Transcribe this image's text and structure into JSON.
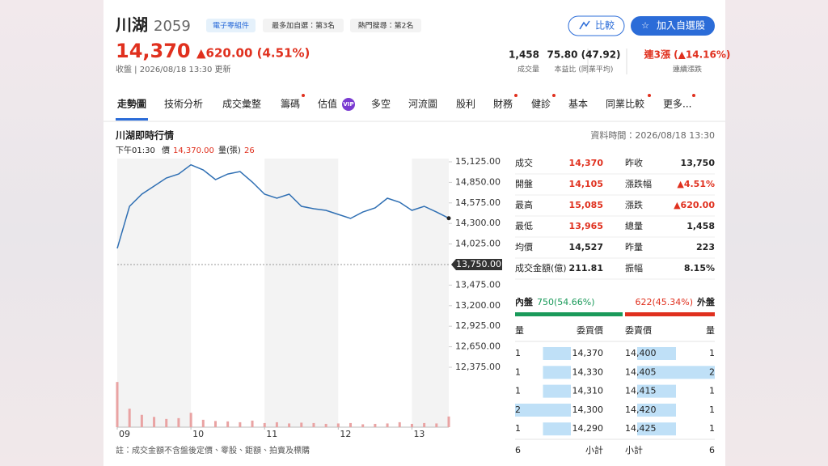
{
  "header": {
    "name": "川湖",
    "code": "2059",
    "tags": [
      "電子零組件",
      "最多加自選：第3名",
      "熱門搜尋：第2名"
    ],
    "buttons": [
      "比較",
      "加入自選股"
    ]
  },
  "quote": {
    "price": "14,370",
    "change": "▲620.00 (4.51%)",
    "updated": "收盤 | 2026/08/18 13:30 更新",
    "stats": [
      {
        "value": "1,458",
        "label": "成交量"
      },
      {
        "value": "75.80 (47.92)",
        "label": "本益比 (同業平均)"
      },
      {
        "value": "連3漲 (▲14.16%)",
        "label": "連續漲跌"
      }
    ]
  },
  "tabs": [
    "走勢圖",
    "技術分析",
    "成交彙整",
    "籌碼",
    "估值",
    "多空",
    "河流圖",
    "股利",
    "財務",
    "健診",
    "基本",
    "同業比較",
    "更多..."
  ],
  "vip_badge": "VIP",
  "section": {
    "title": "川湖即時行情",
    "data_time": "資料時間：2026/08/18 13:30",
    "legend_time": "下午01:30",
    "legend_price": "14,370.00",
    "legend_volume": "26"
  },
  "chart_data": {
    "type": "line",
    "x": [
      540,
      550,
      560,
      570,
      580,
      590,
      600,
      610,
      620,
      630,
      640,
      650,
      660,
      670,
      680,
      690,
      700,
      710,
      720,
      730,
      740,
      750,
      760,
      770,
      780,
      790,
      800,
      810
    ],
    "series": [
      {
        "name": "價",
        "color": "#2f6fb3",
        "values": [
          13965,
          14530,
          14692,
          14800,
          14908,
          14962,
          15085,
          15017,
          14887,
          14962,
          14995,
          14854,
          14692,
          14638,
          14692,
          14530,
          14497,
          14475,
          14421,
          14367,
          14453,
          14508,
          14638,
          14584,
          14475,
          14530,
          14453,
          14370
        ]
      }
    ],
    "volume": {
      "name": "量(張)",
      "color": "#e9a3a3",
      "ylim": [
        0,
        130
      ],
      "values": [
        110,
        45,
        30,
        25,
        20,
        22,
        35,
        18,
        15,
        14,
        12,
        16,
        10,
        12,
        9,
        11,
        10,
        8,
        9,
        10,
        7,
        8,
        9,
        12,
        8,
        10,
        9,
        26
      ]
    },
    "xlim": [
      540,
      810
    ],
    "xticks": [
      {
        "value": 540,
        "label": "09"
      },
      {
        "value": 600,
        "label": "10"
      },
      {
        "value": 660,
        "label": "11"
      },
      {
        "value": 720,
        "label": "12"
      },
      {
        "value": 780,
        "label": "13"
      }
    ],
    "ylim": [
      12375,
      15125
    ],
    "yticks": [
      {
        "value": 15125,
        "label": "15,125.00"
      },
      {
        "value": 14850,
        "label": "14,850.00"
      },
      {
        "value": 14575,
        "label": "14,575.00"
      },
      {
        "value": 14300,
        "label": "14,300.00"
      },
      {
        "value": 14025,
        "label": "14,025.00"
      },
      {
        "value": 13475,
        "label": "13,475.00"
      },
      {
        "value": 13200,
        "label": "13,200.00"
      },
      {
        "value": 12925,
        "label": "12,925.00"
      },
      {
        "value": 12650,
        "label": "12,650.00"
      },
      {
        "value": 12375,
        "label": "12,375.00"
      }
    ],
    "reference": {
      "value": 13750,
      "label": "13,750.00"
    }
  },
  "quote_table": {
    "rows": [
      [
        "成交",
        "14,370",
        "昨收",
        "13,750"
      ],
      [
        "開盤",
        "14,105",
        "漲跌幅",
        "▲4.51%"
      ],
      [
        "最高",
        "15,085",
        "漲跌",
        "▲620.00"
      ],
      [
        "最低",
        "13,965",
        "總量",
        "1,458"
      ],
      [
        "均價",
        "14,527",
        "昨量",
        "223"
      ],
      [
        "成交金額(億)",
        "211.81",
        "振幅",
        "8.15%"
      ]
    ]
  },
  "order_book": {
    "inner_label": "內盤",
    "inner": "750(54.66%)",
    "outer": "622(45.34%)",
    "outer_label": "外盤",
    "headers": [
      "量",
      "委買價",
      "委賣價",
      "量"
    ],
    "rows": [
      [
        1,
        "14,370",
        "14,400",
        1
      ],
      [
        1,
        "14,330",
        "14,405",
        2
      ],
      [
        1,
        "14,310",
        "14,415",
        1
      ],
      [
        2,
        "14,300",
        "14,420",
        1
      ],
      [
        1,
        "14,290",
        "14,425",
        1
      ]
    ],
    "totals": [
      6,
      "小計",
      "小計",
      6
    ]
  },
  "footnote": "註：成交金額不含盤後定價、零股、鉅額、拍賣及標購"
}
